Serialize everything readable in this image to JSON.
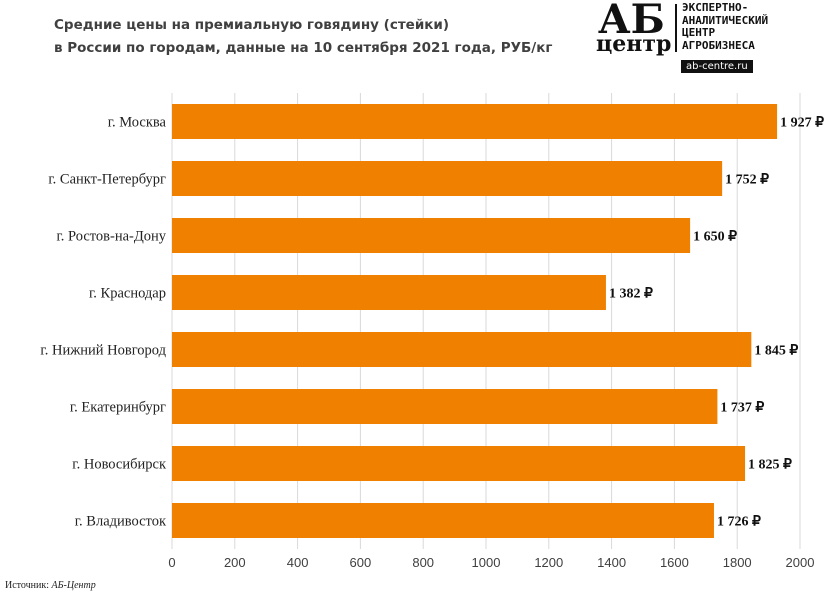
{
  "title_lines": [
    "Средние цены на премиальную говядину (стейки)",
    "в России по городам,  данные на 10 сентября  2021 года, РУБ/кг"
  ],
  "logo": {
    "ab": "АБ",
    "center": "центр",
    "tagline": "ЭКСПЕРТНО-\nАНАЛИТИЧЕСКИЙ\nЦЕНТР\nАГРОБИЗНЕСА",
    "site": "ab-centre.ru"
  },
  "source": {
    "label": "Источник:",
    "value": "АБ-Центр"
  },
  "chart_data": {
    "type": "bar",
    "orientation": "horizontal",
    "categories": [
      "г. Москва",
      "г. Санкт-Петербург",
      "г. Ростов-на-Дону",
      "г. Краснодар",
      "г. Нижний Новгород",
      "г. Екатеринбург",
      "г. Новосибирск",
      "г. Владивосток"
    ],
    "values": [
      1927,
      1752,
      1650,
      1382,
      1845,
      1737,
      1825,
      1726
    ],
    "value_labels": [
      "1 927 ₽",
      "1 752 ₽",
      "1 650 ₽",
      "1 382 ₽",
      "1 845 ₽",
      "1 737 ₽",
      "1 825 ₽",
      "1 726 ₽"
    ],
    "xlim": [
      0,
      2000
    ],
    "x_ticks": [
      "0",
      "200",
      "400",
      "600",
      "800",
      "1000",
      "1200",
      "1400",
      "1600",
      "1800",
      "2000"
    ],
    "bar_color": "#F08000",
    "grid": true
  }
}
